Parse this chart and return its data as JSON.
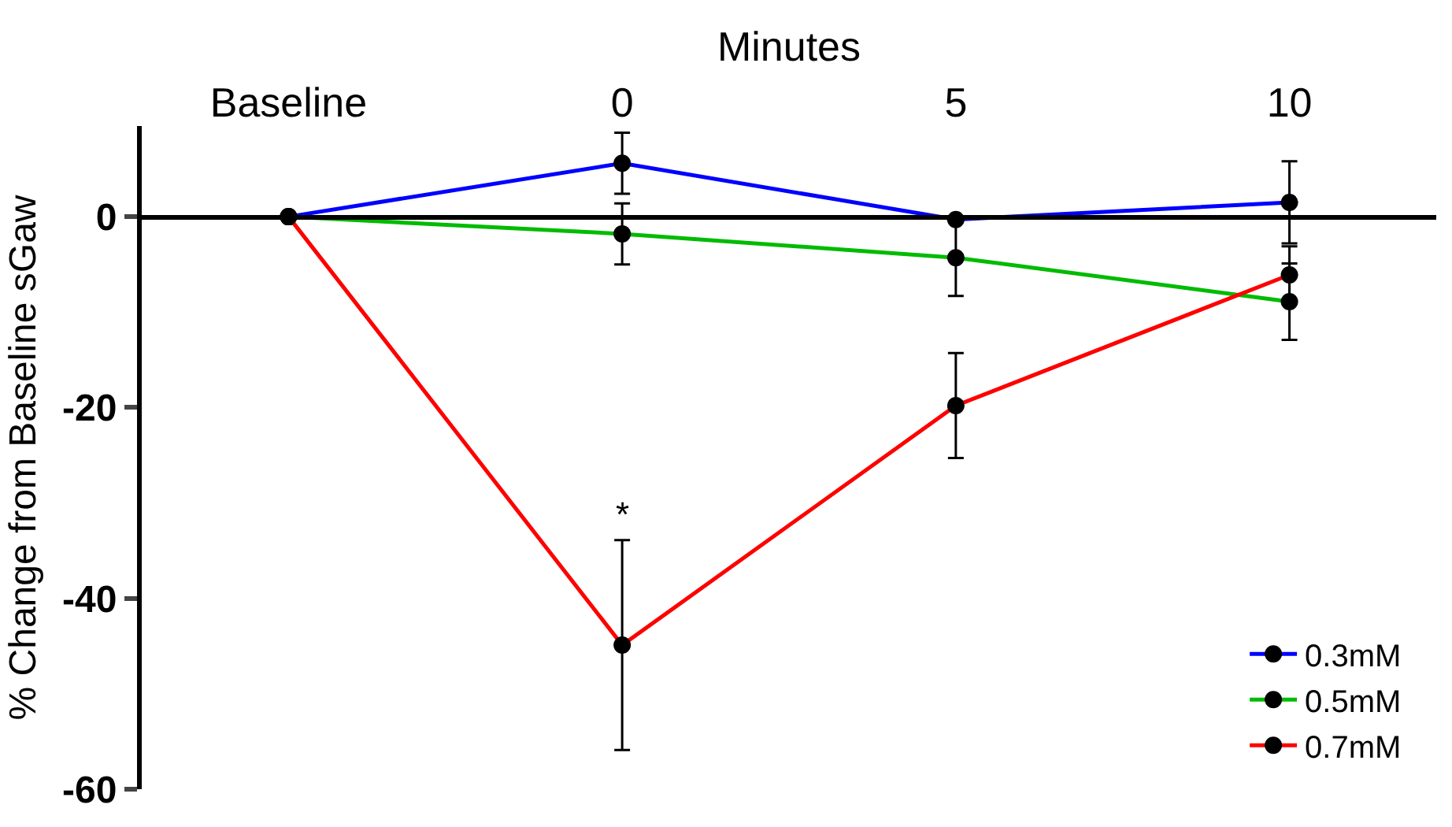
{
  "chart_data": {
    "type": "line",
    "xlabel": "Minutes",
    "ylabel": "% Change from Baseline sGaw",
    "categories": [
      "Baseline",
      "0",
      "5",
      "10"
    ],
    "series": [
      {
        "name": "0.3mM",
        "color": "#0000ff",
        "values": [
          0,
          5.6,
          -0.3,
          1.5
        ],
        "errors": [
          null,
          3.2,
          null,
          4.3
        ]
      },
      {
        "name": "0.5mM",
        "color": "#00bb00",
        "values": [
          0,
          -1.8,
          -4.3,
          -8.9
        ],
        "errors": [
          null,
          3.2,
          4,
          4
        ]
      },
      {
        "name": "0.7mM",
        "color": "#ff0000",
        "values": [
          0,
          -44.9,
          -19.8,
          -6.1
        ],
        "errors": [
          null,
          11,
          5.5,
          3
        ]
      }
    ],
    "ylim": [
      -60,
      9.5
    ],
    "yticks": [
      -60,
      -40,
      -20,
      0
    ],
    "annotations": [
      "*"
    ],
    "marker": "circle",
    "line_style": "solid",
    "legend": "bottom right"
  }
}
